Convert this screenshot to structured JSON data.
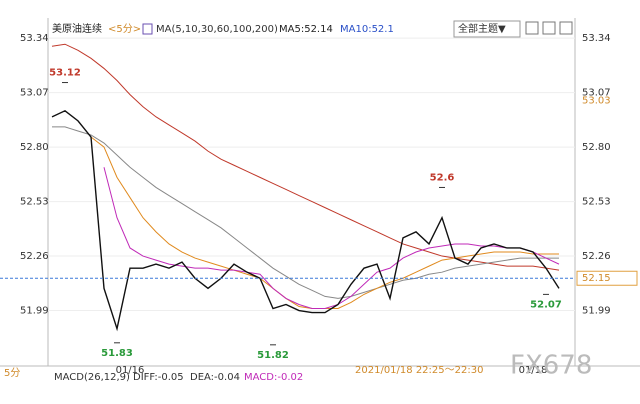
{
  "header": {
    "symbol": "美原油连续",
    "period": "<5分>",
    "ma": "MA(5,10,30,60,100,200)",
    "ma5": "MA5:52.14",
    "ma10": "MA10:52.1",
    "theme_button": "全部主题▼"
  },
  "footer": {
    "period": "5分",
    "macd": "MACD(26,12,9)",
    "diff": "DIFF:-0.05",
    "dea": "DEA:-0.04",
    "macd_value": "MACD:-0.02",
    "time_range": "2021/01/18 22:25～22:30",
    "watermark": "FX678"
  },
  "chart_data": {
    "type": "line",
    "categories": [
      null,
      null,
      null,
      null,
      null,
      null,
      "01/16",
      null,
      null,
      null,
      null,
      null,
      null,
      null,
      null,
      null,
      null,
      null,
      null,
      null,
      null,
      null,
      null,
      null,
      null,
      null,
      null,
      null,
      null,
      null,
      null,
      null,
      null,
      null,
      null,
      null,
      null,
      "01/18",
      null,
      null
    ],
    "series": [
      {
        "color": "#c0392b",
        "values": [
          53.3,
          53.31,
          53.28,
          53.24,
          53.19,
          53.13,
          53.06,
          53.0,
          52.95,
          52.91,
          52.87,
          52.83,
          52.78,
          52.74,
          52.71,
          52.68,
          52.65,
          52.62,
          52.59,
          52.56,
          52.53,
          52.5,
          52.47,
          52.44,
          52.41,
          52.38,
          52.35,
          52.32,
          52.3,
          52.28,
          52.26,
          52.25,
          52.24,
          52.23,
          52.22,
          52.21,
          52.21,
          52.21,
          52.2,
          52.19
        ]
      },
      {
        "color": "#888888",
        "values": [
          52.9,
          52.9,
          52.88,
          52.86,
          52.82,
          52.76,
          52.7,
          52.65,
          52.6,
          52.56,
          52.52,
          52.48,
          52.44,
          52.4,
          52.35,
          52.3,
          52.25,
          52.2,
          52.16,
          52.12,
          52.09,
          52.06,
          52.05,
          52.06,
          52.08,
          52.1,
          52.12,
          52.14,
          52.15,
          52.17,
          52.18,
          52.2,
          52.21,
          52.22,
          52.23,
          52.24,
          52.25,
          52.25,
          52.25,
          52.25
        ]
      },
      {
        "color": "#e08a1e",
        "values": [
          null,
          null,
          null,
          52.85,
          52.8,
          52.65,
          52.55,
          52.45,
          52.38,
          52.32,
          52.28,
          52.25,
          52.23,
          52.21,
          52.19,
          52.17,
          52.15,
          52.1,
          52.05,
          52.01,
          52.0,
          52.0,
          52.0,
          52.03,
          52.07,
          52.1,
          52.13,
          52.15,
          52.18,
          52.21,
          52.24,
          52.25,
          52.26,
          52.27,
          52.28,
          52.28,
          52.28,
          52.27,
          52.27,
          52.27
        ]
      },
      {
        "color": "#c02ab8",
        "values": [
          null,
          null,
          null,
          null,
          52.7,
          52.45,
          52.3,
          52.26,
          52.24,
          52.22,
          52.21,
          52.2,
          52.2,
          52.19,
          52.19,
          52.18,
          52.17,
          52.1,
          52.05,
          52.02,
          52.0,
          52.0,
          52.02,
          52.06,
          52.12,
          52.18,
          52.2,
          52.25,
          52.28,
          52.3,
          52.31,
          52.32,
          52.32,
          52.31,
          52.31,
          52.3,
          52.3,
          52.28,
          52.25,
          52.22
        ]
      },
      {
        "color": "#111111",
        "values": [
          52.95,
          52.98,
          52.93,
          52.85,
          52.1,
          51.9,
          52.2,
          52.2,
          52.22,
          52.2,
          52.23,
          52.15,
          52.1,
          52.15,
          52.22,
          52.18,
          52.15,
          52.0,
          52.02,
          51.99,
          51.98,
          51.98,
          52.02,
          52.12,
          52.2,
          52.22,
          52.05,
          52.35,
          52.38,
          52.32,
          52.45,
          52.25,
          52.22,
          52.3,
          52.32,
          52.3,
          52.3,
          52.28,
          52.2,
          52.1
        ]
      }
    ],
    "ylim": [
      51.72,
      53.43
    ],
    "yticks": [
      53.34,
      53.07,
      {
        "value": 52.8,
        "label": "52.80"
      },
      52.53,
      52.26,
      51.99
    ],
    "grid": true,
    "annotations": [
      {
        "value": 53.12,
        "x": 1
      },
      {
        "value": 51.83,
        "x": 5
      },
      {
        "value": 51.82,
        "x": 17
      },
      {
        "value": 52.6,
        "x": 30
      },
      {
        "value": 52.07,
        "x": 38
      }
    ],
    "last_price": 52.15,
    "reference_price": 53.03
  }
}
